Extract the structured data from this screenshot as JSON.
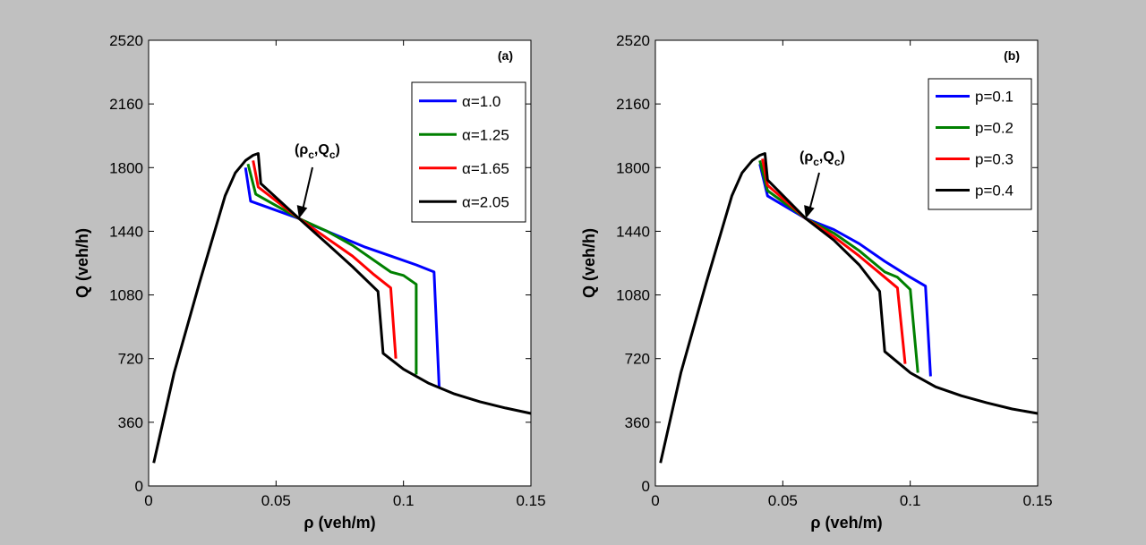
{
  "figure": {
    "background": "#c0c0c0"
  },
  "chart_data": [
    {
      "type": "line",
      "panel_label": "(a)",
      "xlabel": "ρ (veh/m)",
      "ylabel": "Q (veh/h)",
      "xlim": [
        0,
        0.15
      ],
      "ylim": [
        0,
        2520
      ],
      "xticks": [
        0,
        0.05,
        0.1,
        0.15
      ],
      "xtick_labels": [
        "0",
        "0.05",
        "0.1",
        "0.15"
      ],
      "yticks": [
        0,
        360,
        720,
        1080,
        1440,
        1800,
        2160,
        2520
      ],
      "ytick_labels": [
        "0",
        "360",
        "720",
        "1080",
        "1440",
        "1800",
        "2160",
        "2520"
      ],
      "grid": false,
      "legend_position": "top-right",
      "annotation": {
        "text": "(ρc,Qc)",
        "main": "(ρ",
        "sub1": "c",
        "mid": ",Q",
        "sub2": "c",
        "end": ")",
        "x": 0.059,
        "y": 1512
      },
      "series": [
        {
          "name": "α=1.0",
          "color": "#0000ff",
          "x": [
            0.038,
            0.04,
            0.059,
            0.065,
            0.075,
            0.085,
            0.095,
            0.105,
            0.112,
            0.114
          ],
          "y": [
            1800,
            1610,
            1512,
            1470,
            1410,
            1350,
            1300,
            1250,
            1210,
            560
          ]
        },
        {
          "name": "α=1.25",
          "color": "#008000",
          "x": [
            0.039,
            0.042,
            0.059,
            0.07,
            0.08,
            0.09,
            0.095,
            0.1,
            0.105,
            0.105
          ],
          "y": [
            1820,
            1650,
            1512,
            1440,
            1360,
            1260,
            1210,
            1190,
            1140,
            630
          ]
        },
        {
          "name": "α=1.65",
          "color": "#ff0000",
          "x": [
            0.041,
            0.043,
            0.059,
            0.07,
            0.08,
            0.088,
            0.095,
            0.097
          ],
          "y": [
            1840,
            1690,
            1512,
            1400,
            1300,
            1200,
            1120,
            720
          ]
        },
        {
          "name": "α=2.05",
          "color": "#000000",
          "x": [
            0.002,
            0.01,
            0.02,
            0.03,
            0.034,
            0.038,
            0.041,
            0.043,
            0.044,
            0.059,
            0.07,
            0.08,
            0.09,
            0.092,
            0.1,
            0.11,
            0.12,
            0.13,
            0.14,
            0.15
          ],
          "y": [
            130,
            640,
            1150,
            1640,
            1770,
            1840,
            1870,
            1880,
            1710,
            1512,
            1370,
            1240,
            1100,
            750,
            660,
            580,
            520,
            476,
            441,
            410
          ]
        }
      ]
    },
    {
      "type": "line",
      "panel_label": "(b)",
      "xlabel": "ρ (veh/m)",
      "ylabel": "Q (veh/h)",
      "xlim": [
        0,
        0.15
      ],
      "ylim": [
        0,
        2520
      ],
      "xticks": [
        0,
        0.05,
        0.1,
        0.15
      ],
      "xtick_labels": [
        "0",
        "0.05",
        "0.1",
        "0.15"
      ],
      "yticks": [
        0,
        360,
        720,
        1080,
        1440,
        1800,
        2160,
        2520
      ],
      "ytick_labels": [
        "0",
        "360",
        "720",
        "1080",
        "1440",
        "1800",
        "2160",
        "2520"
      ],
      "grid": false,
      "legend_position": "top-right",
      "annotation": {
        "text": "(ρc,Qc)",
        "main": "(ρ",
        "sub1": "c",
        "mid": ",Q",
        "sub2": "c",
        "end": ")",
        "x": 0.059,
        "y": 1512
      },
      "series": [
        {
          "name": "p=0.1",
          "color": "#0000ff",
          "x": [
            0.041,
            0.044,
            0.059,
            0.07,
            0.08,
            0.09,
            0.1,
            0.106,
            0.108
          ],
          "y": [
            1820,
            1640,
            1512,
            1450,
            1370,
            1270,
            1180,
            1130,
            620
          ]
        },
        {
          "name": "p=0.2",
          "color": "#008000",
          "x": [
            0.041,
            0.044,
            0.059,
            0.07,
            0.08,
            0.09,
            0.095,
            0.1,
            0.103
          ],
          "y": [
            1840,
            1670,
            1512,
            1430,
            1330,
            1210,
            1180,
            1110,
            640
          ]
        },
        {
          "name": "p=0.3",
          "color": "#ff0000",
          "x": [
            0.042,
            0.044,
            0.059,
            0.07,
            0.08,
            0.09,
            0.095,
            0.098
          ],
          "y": [
            1850,
            1700,
            1512,
            1410,
            1300,
            1180,
            1120,
            690
          ]
        },
        {
          "name": "p=0.4",
          "color": "#000000",
          "x": [
            0.002,
            0.01,
            0.02,
            0.03,
            0.034,
            0.038,
            0.041,
            0.043,
            0.044,
            0.059,
            0.07,
            0.08,
            0.088,
            0.09,
            0.1,
            0.11,
            0.12,
            0.13,
            0.14,
            0.15
          ],
          "y": [
            130,
            640,
            1150,
            1640,
            1770,
            1840,
            1870,
            1880,
            1730,
            1512,
            1390,
            1250,
            1100,
            760,
            640,
            560,
            510,
            470,
            435,
            410
          ]
        }
      ]
    }
  ]
}
